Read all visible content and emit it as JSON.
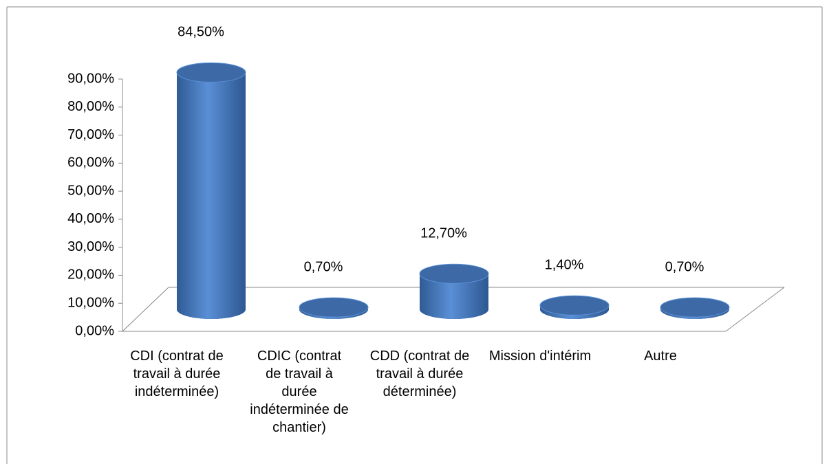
{
  "chart_data": {
    "type": "bar3d",
    "categories": [
      "CDI (contrat de travail à durée indéterminée)",
      "CDIC (contrat de travail à durée indéterminée de chantier)",
      "CDD (contrat de travail à durée déterminée)",
      "Mission d'intérim",
      "Autre"
    ],
    "values": [
      84.5,
      0.7,
      12.7,
      1.4,
      0.7
    ],
    "value_labels": [
      "84,50%",
      "0,70%",
      "12,70%",
      "1,40%",
      "0,70%"
    ],
    "color": "#4f81bd",
    "ylim": [
      0,
      90
    ],
    "yticks": [
      {
        "value": 0,
        "label": "0,00%"
      },
      {
        "value": 10,
        "label": "10,00%"
      },
      {
        "value": 20,
        "label": "20,00%"
      },
      {
        "value": 30,
        "label": "30,00%"
      },
      {
        "value": 40,
        "label": "40,00%"
      },
      {
        "value": 50,
        "label": "50,00%"
      },
      {
        "value": 60,
        "label": "60,00%"
      },
      {
        "value": 70,
        "label": "70,00%"
      },
      {
        "value": 80,
        "label": "80,00%"
      },
      {
        "value": 90,
        "label": "90,00%"
      }
    ]
  }
}
